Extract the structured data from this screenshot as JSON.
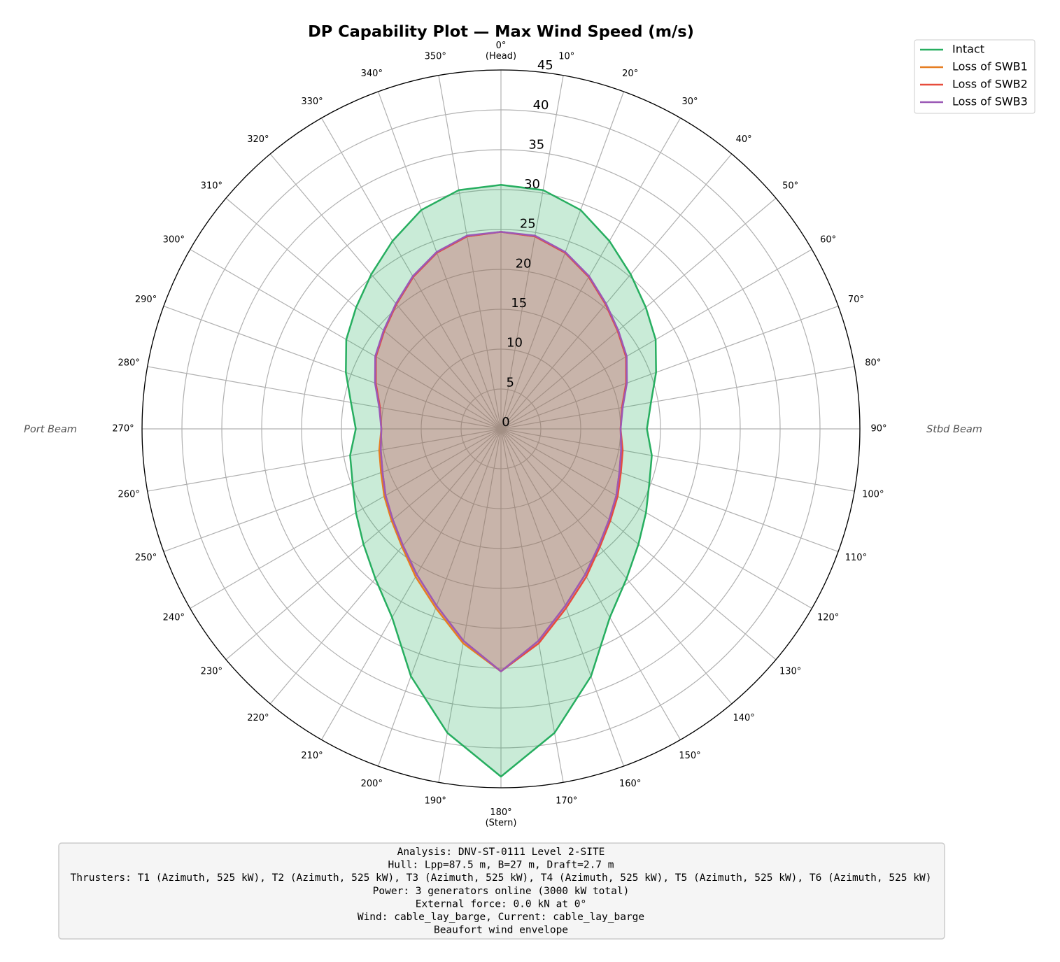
{
  "chart_data": {
    "type": "polar",
    "title": "DP Capability Plot — Max Wind Speed (m/s)",
    "theta_zero": "top",
    "theta_direction": "clockwise",
    "grid": true,
    "legend": "upper right",
    "rlim": [
      0,
      45
    ],
    "rticks": [
      0,
      5,
      10,
      15,
      20,
      25,
      30,
      35,
      40,
      45
    ],
    "thetaticks": [
      {
        "value": 0,
        "label": "0°\n(Head)"
      },
      {
        "value": 10,
        "label": "10°"
      },
      {
        "value": 20,
        "label": "20°"
      },
      {
        "value": 30,
        "label": "30°"
      },
      {
        "value": 40,
        "label": "40°"
      },
      {
        "value": 50,
        "label": "50°"
      },
      {
        "value": 60,
        "label": "60°"
      },
      {
        "value": 70,
        "label": "70°"
      },
      {
        "value": 80,
        "label": "80°"
      },
      {
        "value": 90,
        "label": "90°"
      },
      {
        "value": 100,
        "label": "100°"
      },
      {
        "value": 110,
        "label": "110°"
      },
      {
        "value": 120,
        "label": "120°"
      },
      {
        "value": 130,
        "label": "130°"
      },
      {
        "value": 140,
        "label": "140°"
      },
      {
        "value": 150,
        "label": "150°"
      },
      {
        "value": 160,
        "label": "160°"
      },
      {
        "value": 170,
        "label": "170°"
      },
      {
        "value": 180,
        "label": "180°\n(Stern)"
      },
      {
        "value": 190,
        "label": "190°"
      },
      {
        "value": 200,
        "label": "200°"
      },
      {
        "value": 210,
        "label": "210°"
      },
      {
        "value": 220,
        "label": "220°"
      },
      {
        "value": 230,
        "label": "230°"
      },
      {
        "value": 240,
        "label": "240°"
      },
      {
        "value": 250,
        "label": "250°"
      },
      {
        "value": 260,
        "label": "260°"
      },
      {
        "value": 270,
        "label": "270°"
      },
      {
        "value": 280,
        "label": "280°"
      },
      {
        "value": 290,
        "label": "290°"
      },
      {
        "value": 300,
        "label": "300°"
      },
      {
        "value": 310,
        "label": "310°"
      },
      {
        "value": 320,
        "label": "320°"
      },
      {
        "value": 330,
        "label": "330°"
      },
      {
        "value": 340,
        "label": "340°"
      },
      {
        "value": 350,
        "label": "350°"
      }
    ],
    "side_labels": {
      "left": "Port Beam",
      "right": "Stbd Beam"
    },
    "theta": [
      0,
      10,
      20,
      30,
      40,
      50,
      60,
      70,
      80,
      90,
      100,
      110,
      120,
      130,
      140,
      150,
      160,
      170,
      180,
      190,
      200,
      210,
      220,
      230,
      240,
      250,
      260,
      270,
      280,
      290,
      300,
      310,
      320,
      330,
      340,
      350
    ],
    "series": [
      {
        "name": "Intact",
        "color": "#27ae60",
        "fill_opacity": 0.25,
        "values": [
          30.6,
          30.4,
          29.2,
          27.2,
          25.3,
          23.7,
          22.4,
          20.7,
          19.1,
          18.3,
          19.2,
          19.8,
          21.0,
          22.5,
          24.5,
          27.3,
          33.0,
          38.7,
          43.6,
          38.7,
          33.0,
          27.3,
          24.5,
          22.5,
          21.0,
          19.8,
          19.2,
          18.2,
          19.1,
          20.7,
          22.4,
          23.7,
          25.3,
          27.2,
          29.2,
          30.4
        ]
      },
      {
        "name": "Loss of SWB1",
        "color": "#e67e22",
        "fill_opacity": 0.15,
        "values": [
          24.7,
          24.5,
          23.5,
          22.0,
          20.4,
          19.1,
          18.1,
          16.7,
          15.4,
          15.0,
          15.3,
          15.8,
          16.7,
          17.7,
          19.1,
          21.1,
          23.6,
          27.0,
          30.4,
          27.3,
          23.9,
          21.4,
          19.3,
          17.9,
          16.9,
          16.0,
          15.5,
          15.0,
          15.4,
          16.7,
          18.1,
          19.1,
          20.4,
          22.0,
          23.5,
          24.5
        ]
      },
      {
        "name": "Loss of SWB2",
        "color": "#e74c3c",
        "fill_opacity": 0.15,
        "values": [
          24.7,
          24.5,
          23.5,
          22.0,
          20.4,
          19.1,
          18.1,
          16.7,
          15.4,
          15.0,
          15.5,
          16.0,
          16.9,
          17.9,
          19.3,
          21.4,
          23.9,
          27.3,
          30.4,
          27.0,
          23.6,
          21.1,
          19.1,
          17.7,
          16.7,
          15.8,
          15.3,
          15.0,
          15.4,
          16.7,
          18.1,
          19.1,
          20.4,
          22.0,
          23.5,
          24.5
        ]
      },
      {
        "name": "Loss of SWB3",
        "color": "#9b59b6",
        "fill_opacity": 0.15,
        "values": [
          24.7,
          24.6,
          23.6,
          22.1,
          20.5,
          19.2,
          18.2,
          16.8,
          15.5,
          15.0,
          15.3,
          15.8,
          16.7,
          17.7,
          19.1,
          21.1,
          23.6,
          27.0,
          30.4,
          27.0,
          23.6,
          21.1,
          19.1,
          17.7,
          16.7,
          15.8,
          15.3,
          15.0,
          15.5,
          16.8,
          18.2,
          19.2,
          20.5,
          22.1,
          23.6,
          24.6
        ]
      }
    ],
    "info_box": [
      "Analysis: DNV-ST-0111 Level 2-SITE",
      "Hull: Lpp=87.5 m, B=27 m, Draft=2.7 m",
      "Thrusters: T1 (Azimuth, 525 kW), T2 (Azimuth, 525 kW), T3 (Azimuth, 525 kW), T4 (Azimuth, 525 kW), T5 (Azimuth, 525 kW), T6 (Azimuth, 525 kW)",
      "Power: 3 generators online (3000 kW total)",
      "External force: 0.0 kN at 0°",
      "Wind: cable_lay_barge, Current: cable_lay_barge",
      "Beaufort wind envelope"
    ]
  }
}
